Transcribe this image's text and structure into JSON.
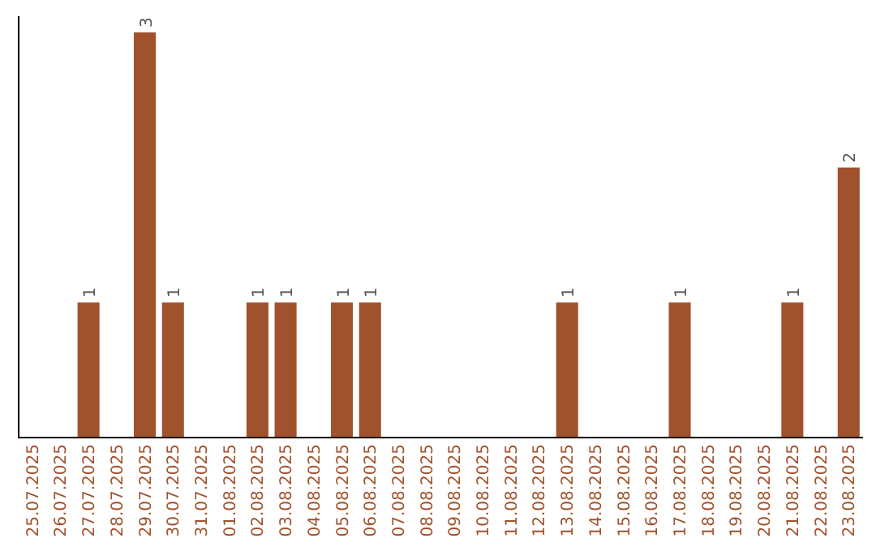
{
  "chart_data": {
    "type": "bar",
    "categories": [
      "25.07.2025",
      "26.07.2025",
      "27.07.2025",
      "28.07.2025",
      "29.07.2025",
      "30.07.2025",
      "31.07.2025",
      "01.08.2025",
      "02.08.2025",
      "03.08.2025",
      "04.08.2025",
      "05.08.2025",
      "06.08.2025",
      "07.08.2025",
      "08.08.2025",
      "09.08.2025",
      "10.08.2025",
      "11.08.2025",
      "12.08.2025",
      "13.08.2025",
      "14.08.2025",
      "15.08.2025",
      "16.08.2025",
      "17.08.2025",
      "18.08.2025",
      "19.08.2025",
      "20.08.2025",
      "21.08.2025",
      "22.08.2025",
      "23.08.2025"
    ],
    "values": [
      null,
      null,
      1,
      null,
      3,
      1,
      null,
      null,
      1,
      1,
      null,
      1,
      1,
      null,
      null,
      null,
      null,
      null,
      null,
      1,
      null,
      null,
      null,
      1,
      null,
      null,
      null,
      1,
      null,
      2
    ],
    "color": "#a0522d",
    "data_labels": true
  }
}
